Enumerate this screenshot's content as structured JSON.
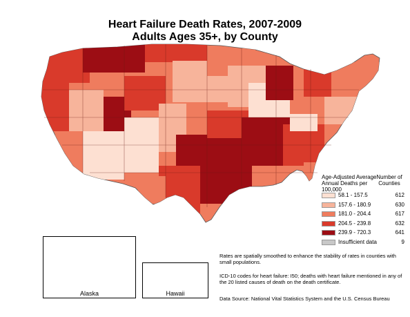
{
  "title": {
    "line1": "Heart Failure Death Rates, 2007-2009",
    "line2": "Adults Ages 35+, by County"
  },
  "legend": {
    "heading": "Age-Adjusted Average Annual Deaths per 100,000",
    "count_heading": "Number of Counties",
    "classes": [
      {
        "range": "58.1 - 157.5",
        "count": "612",
        "color": "#fde0d2"
      },
      {
        "range": "157.6 - 180.9",
        "count": "630",
        "color": "#f7b49b"
      },
      {
        "range": "181.0 - 204.4",
        "count": "617",
        "color": "#ef7c5e"
      },
      {
        "range": "204.5 - 239.8",
        "count": "632",
        "color": "#d93a2b"
      },
      {
        "range": "239.9 - 720.3",
        "count": "641",
        "color": "#9c0d14"
      },
      {
        "range": "Insufficient data",
        "count": "9",
        "color": "#c8c8c8"
      }
    ]
  },
  "insets": {
    "alaska": "Alaska",
    "hawaii": "Hawaii"
  },
  "notes": {
    "smoothing": "Rates are spatially smoothed to enhance the stability of rates in counties with small populations.",
    "icd": "ICD-10 codes for heart failure: I50; deaths with heart failure mentioned in any of the 20 listed causes of death on the death certificate.",
    "source": "Data Source: National Vital Statistics System and the U.S. Census Bureau"
  }
}
